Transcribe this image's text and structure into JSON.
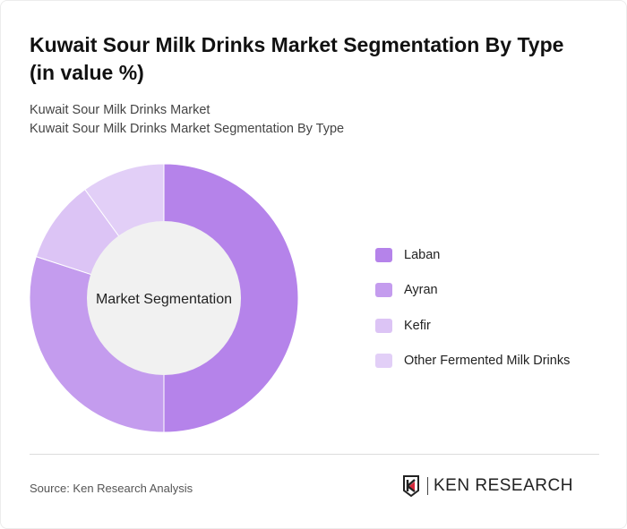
{
  "header": {
    "title": "Kuwait Sour Milk Drinks Market Segmentation By Type (in value %)",
    "subtitle_1": "Kuwait Sour Milk Drinks Market",
    "subtitle_2": "Kuwait Sour Milk Drinks Market Segmentation By Type"
  },
  "chart_data": {
    "type": "pie",
    "variant": "donut",
    "center_label": "Market Segmentation",
    "categories": [
      "Laban",
      "Ayran",
      "Kefir",
      "Other Fermented Milk Drinks"
    ],
    "values": [
      50,
      30,
      10,
      10
    ],
    "colors": [
      "#b583ea",
      "#c49cee",
      "#dcc4f5",
      "#e2cff7"
    ],
    "legend_position": "right"
  },
  "footer": {
    "source": "Source: Ken Research Analysis",
    "logo_text": "KEN RESEARCH"
  }
}
